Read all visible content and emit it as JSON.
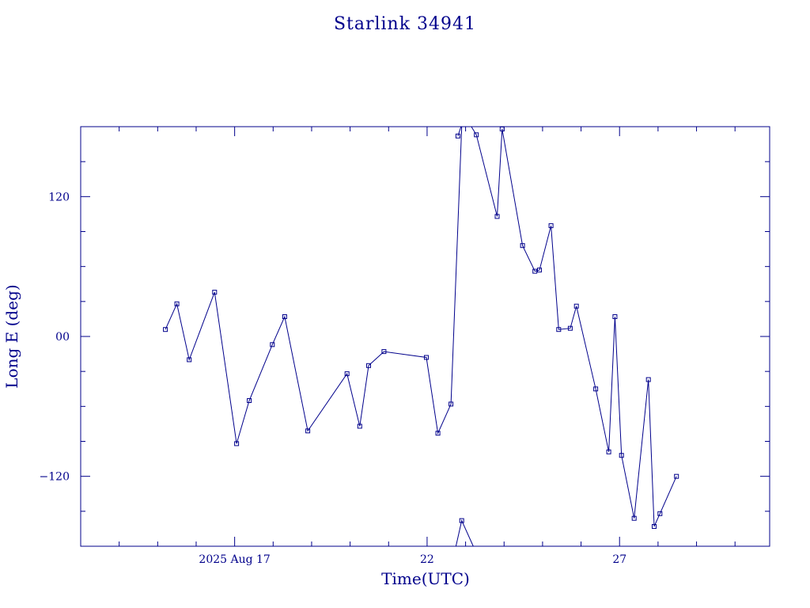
{
  "chart_data": {
    "type": "line",
    "title": "Starlink 34941",
    "xlabel": "Time(UTC)",
    "ylabel": "Long E (deg)",
    "x_unit": "days of August 2025 (UTC)",
    "xlim": [
      13.0,
      30.9
    ],
    "ylim": [
      -180,
      180
    ],
    "x_ticks": [
      {
        "value": 17,
        "label": "2025 Aug 17"
      },
      {
        "value": 22,
        "label": "22"
      },
      {
        "value": 27,
        "label": "27"
      }
    ],
    "y_ticks": [
      {
        "value": 120,
        "label": "120"
      },
      {
        "value": 0,
        "label": "00"
      },
      {
        "value": -120,
        "label": "−120"
      }
    ],
    "grid": false,
    "series": [
      {
        "markers": "square",
        "points": [
          [
            15.2,
            6
          ],
          [
            15.5,
            28
          ],
          [
            15.82,
            -20
          ],
          [
            16.48,
            38
          ],
          [
            17.05,
            -92
          ],
          [
            17.38,
            -55
          ],
          [
            17.98,
            -7
          ],
          [
            18.3,
            17
          ],
          [
            18.9,
            -81
          ],
          [
            19.92,
            -32
          ],
          [
            20.25,
            -77
          ],
          [
            20.48,
            -25
          ],
          [
            20.88,
            -13
          ],
          [
            21.98,
            -18
          ],
          [
            22.28,
            -83
          ],
          [
            22.62,
            -58
          ],
          [
            22.9,
            180
          ],
          [
            22.8,
            172
          ],
          [
            22.88,
            180
          ],
          [
            23.15,
            180
          ],
          [
            23.28,
            173
          ],
          [
            23.82,
            103
          ],
          [
            23.95,
            178
          ],
          [
            24.48,
            78
          ],
          [
            24.8,
            56
          ],
          [
            24.92,
            57
          ],
          [
            25.22,
            95
          ],
          [
            25.42,
            6
          ],
          [
            25.72,
            7
          ],
          [
            25.88,
            26
          ],
          [
            26.38,
            -45
          ],
          [
            26.72,
            -99
          ],
          [
            26.88,
            17
          ],
          [
            27.05,
            -102
          ],
          [
            27.38,
            -156
          ],
          [
            27.75,
            -37
          ],
          [
            27.9,
            -163
          ],
          [
            28.05,
            -152
          ],
          [
            28.48,
            -120
          ]
        ],
        "segments": [
          [
            0,
            16
          ],
          [
            17,
            18
          ],
          [
            19,
            38
          ]
        ],
        "wrapped_segment": {
          "points": [
            [
              22.75,
              -180
            ],
            [
              22.9,
              -158
            ],
            [
              23.2,
              -180
            ]
          ],
          "marker_indices": [
            1
          ]
        }
      }
    ]
  }
}
